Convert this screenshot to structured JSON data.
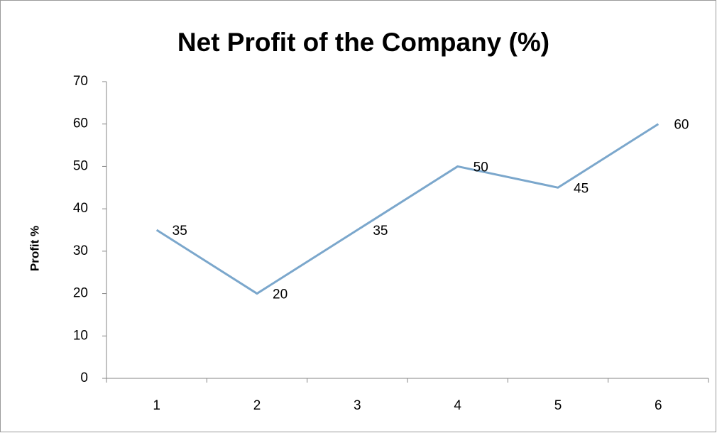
{
  "chart_data": {
    "type": "line",
    "title": "Net Profit of the Company (%)",
    "y_label": "Profit %",
    "categories": [
      "1",
      "2",
      "3",
      "4",
      "5",
      "6"
    ],
    "values": [
      35,
      20,
      35,
      50,
      45,
      60
    ],
    "color": "#7ba7cc",
    "ylim": [
      0,
      70
    ],
    "yticks": [
      0,
      10,
      20,
      30,
      40,
      50,
      60,
      70
    ],
    "grid": false
  }
}
